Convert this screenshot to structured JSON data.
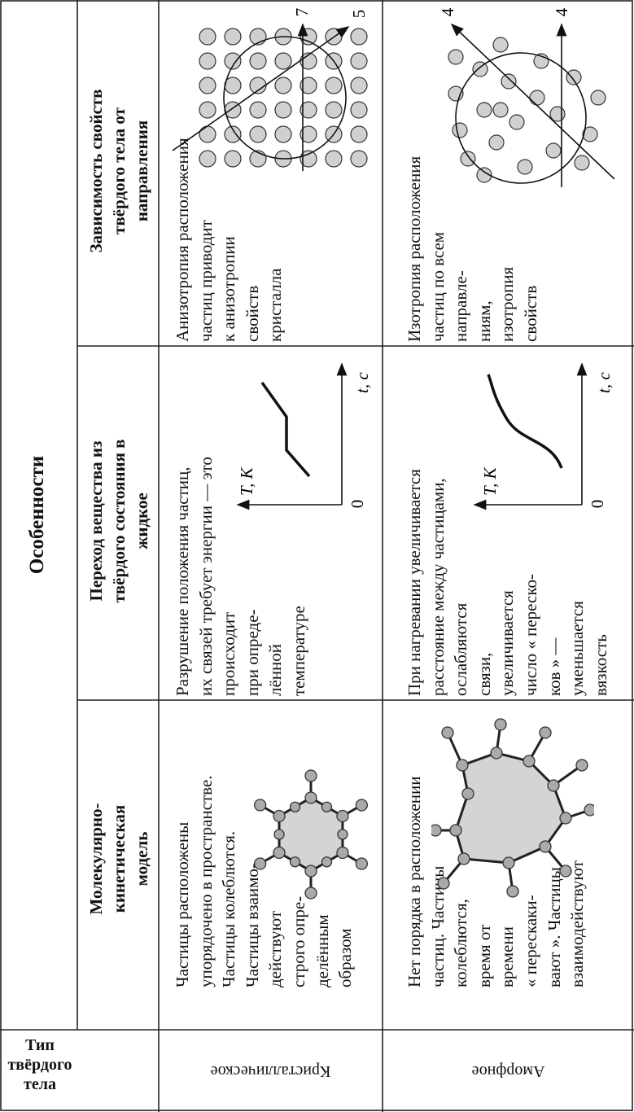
{
  "header": {
    "type": "Тип твёрдого тела",
    "features": "Особенности",
    "columns": [
      "Молекулярно-кинетическая модель",
      "Переход вещества из твёрдого состояния в жидкое",
      "Зависимость свойств твёрдого тела от направления"
    ]
  },
  "rows": [
    {
      "type": "Кристаллическое",
      "model": [
        "Частицы расположены",
        "упорядочено в пространстве.",
        "Частицы колеблются.",
        "Частицы взаимо-",
        "действуют",
        "строго опре-",
        "делённым",
        "образом"
      ],
      "transition": [
        "Разрушение положения частиц,",
        "их связей требует энергии — это",
        "происходит",
        "при опреде-",
        "лённой",
        "температуре"
      ],
      "dependence": [
        "Анизотропия расположения",
        "частиц приводит",
        "к анизотропии",
        "свойств",
        "кристалла"
      ],
      "graph": {
        "y_label": "T, K",
        "x_label": "t, c",
        "origin": "0"
      },
      "axis_labels": [
        "7",
        "5"
      ]
    },
    {
      "type": "Аморфное",
      "model": [
        "Нет порядка в расположении",
        "частиц. Частицы",
        "колеблются,",
        "время от",
        "времени",
        "« перескаки-",
        "вают ». Частицы",
        "взаимодействуют"
      ],
      "transition": [
        "При нагревании увеличивается",
        "расстояние между частицами,",
        "ослабляются",
        "связи,",
        "увеличивается",
        "число « переско-",
        "ков » —",
        "уменьшается",
        "вязкость"
      ],
      "dependence": [
        "Изотропия расположения",
        "частиц по всем",
        "направле-",
        "ниям,",
        "изотропия",
        "свойств"
      ],
      "graph": {
        "y_label": "T, K",
        "x_label": "t, c",
        "origin": "0"
      },
      "axis_labels": [
        "4",
        "4"
      ]
    }
  ]
}
